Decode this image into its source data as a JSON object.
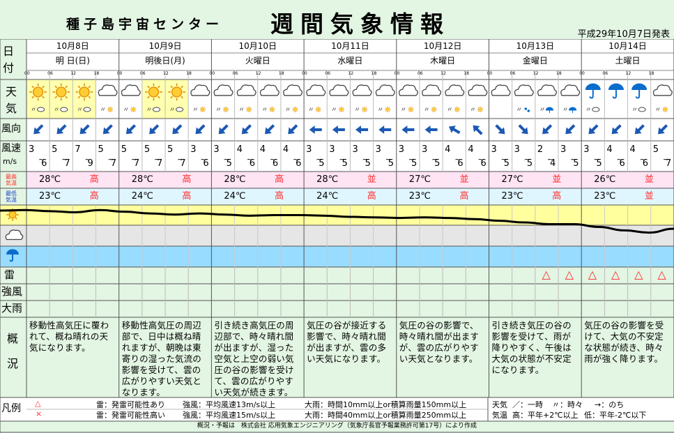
{
  "header": {
    "location_title": "種子島宇宙センター",
    "main_title": "週間気象情報",
    "issued": "平成29年10月7日発表"
  },
  "row_labels": {
    "date": "日\n付",
    "weather": "天\n気",
    "wind_dir": "風向",
    "wind_speed": "風速",
    "wind_unit": "m/s",
    "tmax": "最高\n気温",
    "tmin": "最低\n気温",
    "thunder": "雷",
    "strong_wind": "強風",
    "heavy_rain": "大雨",
    "overview": "概\n\n況",
    "legend": "凡例"
  },
  "hours": [
    "00",
    "06",
    "12",
    "18"
  ],
  "days": [
    {
      "date": "10月8日",
      "label": "明 日(日)",
      "icons": [
        "sun",
        "sun",
        "sun",
        "cloud"
      ],
      "subs": [
        "c",
        "c",
        "c",
        "s"
      ],
      "dirs": [
        225,
        225,
        225,
        225
      ],
      "ws": [
        [
          "3",
          "6"
        ],
        [
          "5",
          "7"
        ],
        [
          "7",
          "9"
        ],
        [
          "5",
          "7"
        ]
      ],
      "tmax": "28℃",
      "tmax_lvl": "高",
      "tmin": "23℃",
      "tmin_lvl": "高",
      "thunder": [
        "",
        "",
        "",
        ""
      ],
      "overview": "移動性高気圧に覆わ\nれて、概ね晴れの天\n気になります。"
    },
    {
      "date": "10月9日",
      "label": "明後日(月)",
      "icons": [
        "cloud",
        "sun",
        "sun",
        "cloud"
      ],
      "subs": [
        "s",
        "c",
        "c",
        "s"
      ],
      "dirs": [
        225,
        225,
        225,
        225
      ],
      "ws": [
        [
          "5",
          "7"
        ],
        [
          "5",
          "7"
        ],
        [
          "5",
          "7"
        ],
        [
          "3",
          "6"
        ]
      ],
      "tmax": "28℃",
      "tmax_lvl": "高",
      "tmin": "24℃",
      "tmin_lvl": "高",
      "thunder": [
        "",
        "",
        "",
        ""
      ],
      "overview": "移動性高気圧の周辺\n部で、日中は概ね晴\nれますが、朝晩は東\n寄りの湿った気流の\n影響を受けて、雲の\n広がりやすい天気と\nなります。"
    },
    {
      "date": "10月10日",
      "label": "火曜日",
      "icons": [
        "cloud",
        "cloud",
        "cloud",
        "cloud"
      ],
      "subs": [
        "s",
        "s",
        "s",
        "s"
      ],
      "dirs": [
        225,
        225,
        225,
        225
      ],
      "ws": [
        [
          "3",
          "5"
        ],
        [
          "4",
          "6"
        ],
        [
          "4",
          "6"
        ],
        [
          "4",
          "6"
        ]
      ],
      "tmax": "28℃",
      "tmax_lvl": "高",
      "tmin": "24℃",
      "tmin_lvl": "高",
      "thunder": [
        "",
        "",
        "",
        ""
      ],
      "overview": "引き続き高気圧の周\n辺部で、時々晴れ間\nが出ますが、湿った\n空気と上空の弱い気\n圧の谷の影響を受け\nて、雲の広がりやす\nい天気が続きます。"
    },
    {
      "date": "10月11日",
      "label": "水曜日",
      "icons": [
        "cloud",
        "cloud",
        "cloud",
        "cloud"
      ],
      "subs": [
        "s",
        "s",
        "s",
        "s"
      ],
      "dirs": [
        270,
        270,
        270,
        270
      ],
      "ws": [
        [
          "3",
          "5"
        ],
        [
          "3",
          "5"
        ],
        [
          "3",
          "5"
        ],
        [
          "3",
          "5"
        ]
      ],
      "tmax": "28℃",
      "tmax_lvl": "並",
      "tmin": "24℃",
      "tmin_lvl": "高",
      "thunder": [
        "",
        "",
        "",
        ""
      ],
      "overview": "気圧の谷が接近する\n影響で、時々晴れ間\nが出ますが、雲の多\nい天気になります。"
    },
    {
      "date": "10月12日",
      "label": "木曜日",
      "icons": [
        "cloud",
        "cloud",
        "cloud",
        "cloud"
      ],
      "subs": [
        "s",
        "s",
        "s",
        "s"
      ],
      "dirs": [
        270,
        270,
        300,
        315
      ],
      "ws": [
        [
          "3",
          "5"
        ],
        [
          "3",
          "5"
        ],
        [
          "4",
          "6"
        ],
        [
          "4",
          "6"
        ]
      ],
      "tmax": "27℃",
      "tmax_lvl": "並",
      "tmin": "23℃",
      "tmin_lvl": "高",
      "thunder": [
        "",
        "",
        "",
        ""
      ],
      "overview": "気圧の谷の影響で、\n時々晴れ間が出ます\nが、雲の広がりやす\nい天気となります。"
    },
    {
      "date": "10月13日",
      "label": "金曜日",
      "icons": [
        "cloud",
        "cloud",
        "cloud",
        "cloud"
      ],
      "subs": [
        "n",
        "r",
        "u",
        "u"
      ],
      "dirs": [
        135,
        135,
        225,
        225
      ],
      "ws": [
        [
          "3",
          "5"
        ],
        [
          "3",
          "5"
        ],
        [
          "2",
          "4"
        ],
        [
          "3",
          "5"
        ]
      ],
      "tmax": "27℃",
      "tmax_lvl": "並",
      "tmin": "23℃",
      "tmin_lvl": "高",
      "thunder": [
        "",
        "",
        "△",
        "△"
      ],
      "overview": "引き続き気圧の谷の\n影響を受けて、雨が\n降りやすく、午後は\n大気の状態が不安定\nになります。"
    },
    {
      "date": "10月14日",
      "label": "土曜日",
      "icons": [
        "umbrella",
        "umbrella",
        "umbrella",
        "cloud"
      ],
      "subs": [
        "c",
        "n",
        "c",
        "s"
      ],
      "dirs": [
        225,
        225,
        225,
        225
      ],
      "ws": [
        [
          "3",
          "5"
        ],
        [
          "4",
          "6"
        ],
        [
          "4",
          "6"
        ],
        [
          "5",
          "7"
        ]
      ],
      "tmax": "26℃",
      "tmax_lvl": "並",
      "tmin": "23℃",
      "tmin_lvl": "並",
      "thunder": [
        "△",
        "△",
        "△",
        "△"
      ],
      "overview": "気圧の谷の影響を受\nけて、大気の不安定\nな状態が続き、時々\n雨が強く降ります。"
    }
  ],
  "trend_values": [
    0.95,
    0.96,
    0.94,
    0.92,
    0.96,
    0.93,
    0.9,
    0.88,
    0.9,
    0.88,
    0.86,
    0.87,
    0.87,
    0.86,
    0.84,
    0.83,
    0.82,
    0.83,
    0.82,
    0.8,
    0.77,
    0.74,
    0.71,
    0.71,
    0.66,
    0.6,
    0.56,
    0.63
  ],
  "legend": {
    "marks": [
      "△",
      "×"
    ],
    "thunder_lines": [
      "雷：発雷可能性あり",
      "雷：発雷可能性高い"
    ],
    "wind_lines": [
      "強風：平均風速13m/s以上",
      "強風：平均風速15m/s以上"
    ],
    "rain_lines": [
      "大雨：時間10mm以上or積算雨量150mm以上",
      "大雨：時間40mm以上or積算雨量250mm以上"
    ],
    "weather_title": "天気",
    "weather_items": [
      "／：一時",
      "〃：時々",
      "→：のち"
    ],
    "temp_title": "気温",
    "temp_items": [
      "高：平年+2℃以上",
      "低：平年-2℃以下"
    ]
  },
  "footer": "概況・予報は　株式会社 応用気象エンジニアリング（気象庁長官予報業務許可第17号）により作成",
  "colors": {
    "bg": "#e3f5e3",
    "sun_band": "#ffff9e",
    "cloud_band": "#e6e6e6",
    "rain_band": "#98dcff",
    "weather_hl": "#ffffb0",
    "tmax_bg": "#ffe4f4",
    "tmin_bg": "#e0f6ff",
    "arrow": "#1c59b4",
    "red": "#ff2a2a",
    "umbrella": "#0a6dcc"
  }
}
